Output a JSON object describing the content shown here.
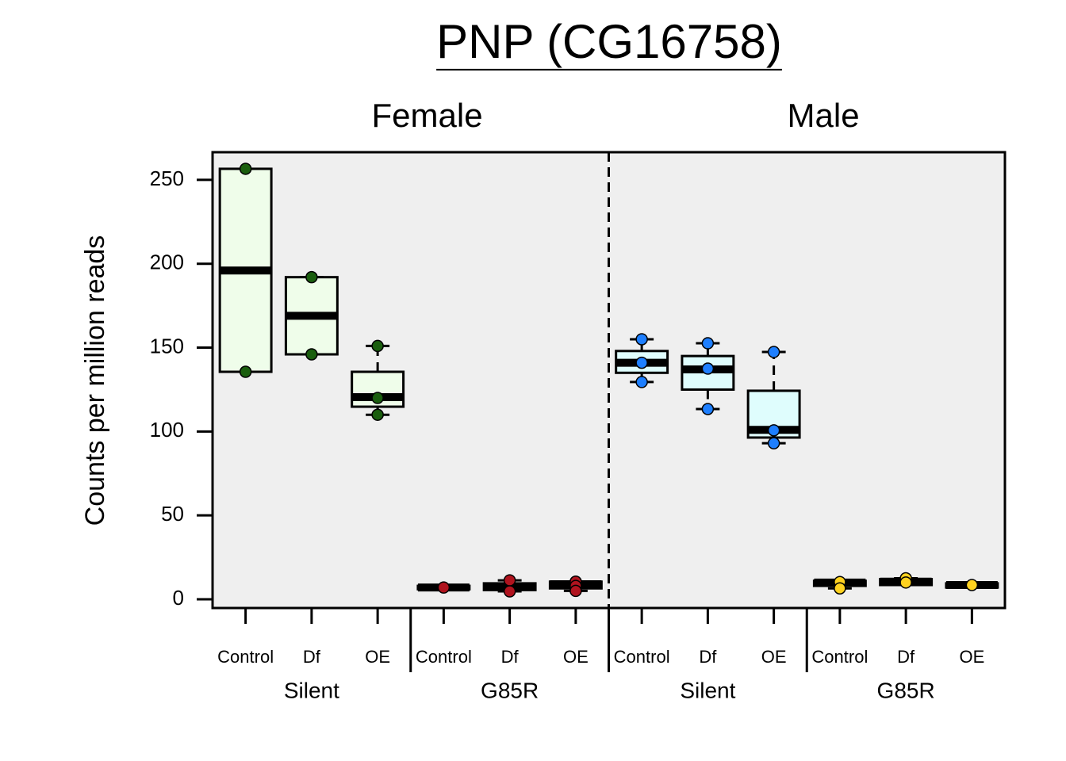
{
  "chart_data": {
    "type": "box",
    "title": "PNP (CG16758)",
    "y_label": "Counts per million reads",
    "panels": [
      "Female",
      "Male"
    ],
    "groups": [
      "Silent",
      "G85R",
      "Silent",
      "G85R"
    ],
    "categories": [
      "Control",
      "Df",
      "OE",
      "Control",
      "Df",
      "OE",
      "Control",
      "Df",
      "OE",
      "Control",
      "Df",
      "OE"
    ],
    "ylim": [
      -5.2,
      266.5
    ],
    "yticks": [
      0,
      50,
      100,
      150,
      200,
      250
    ],
    "background": "#efefef",
    "boxes": [
      {
        "q1": 135.6,
        "median": 196,
        "q3": 256.6,
        "whisker_low": 135.6,
        "whisker_high": 256.6,
        "points": [
          256.6,
          135.6
        ],
        "fill": "#effdea",
        "point_color": "#1a5e0e"
      },
      {
        "q1": 146,
        "median": 169,
        "q3": 192,
        "whisker_low": 146,
        "whisker_high": 192,
        "points": [
          192,
          146
        ],
        "fill": "#effdea",
        "point_color": "#1a5e0e"
      },
      {
        "q1": 114.8,
        "median": 120.5,
        "q3": 135.6,
        "whisker_low": 110,
        "whisker_high": 151,
        "points": [
          151,
          120,
          110
        ],
        "fill": "#effdea",
        "point_color": "#1a5e0e"
      },
      {
        "q1": 6,
        "median": 7,
        "q3": 8,
        "whisker_low": 6,
        "whisker_high": 8,
        "points": [
          7
        ],
        "fill": "#effdea",
        "point_color": "#b0131e"
      },
      {
        "q1": 5.5,
        "median": 7.5,
        "q3": 9.5,
        "whisker_low": 4.7,
        "whisker_high": 11.3,
        "points": [
          11.3,
          4.7
        ],
        "fill": "#effdea",
        "point_color": "#b0131e"
      },
      {
        "q1": 6.5,
        "median": 9,
        "q3": 10.5,
        "whisker_low": 5,
        "whisker_high": 10.5,
        "points": [
          10.5,
          8,
          5
        ],
        "fill": "#effdea",
        "point_color": "#b0131e"
      },
      {
        "q1": 135,
        "median": 141,
        "q3": 148,
        "whisker_low": 129.5,
        "whisker_high": 155,
        "points": [
          155,
          141,
          129.5
        ],
        "fill": "#dffdfd",
        "point_color": "#1e7fff"
      },
      {
        "q1": 125,
        "median": 137,
        "q3": 145,
        "whisker_low": 113.4,
        "whisker_high": 152.6,
        "points": [
          152.6,
          137.5,
          113.4
        ],
        "fill": "#dffdfd",
        "point_color": "#1e7fff"
      },
      {
        "q1": 96.4,
        "median": 101,
        "q3": 124.3,
        "whisker_low": 93,
        "whisker_high": 147.4,
        "points": [
          147.4,
          100.7,
          93
        ],
        "fill": "#dffdfd",
        "point_color": "#1e7fff"
      },
      {
        "q1": 8,
        "median": 10,
        "q3": 11,
        "whisker_low": 6.5,
        "whisker_high": 11,
        "points": [
          10.3,
          6.5
        ],
        "fill": "#dffdfd",
        "point_color": "#ffd21f"
      },
      {
        "q1": 8.5,
        "median": 10.5,
        "q3": 12,
        "whisker_low": 8.5,
        "whisker_high": 12.5,
        "points": [
          12.5,
          10
        ],
        "fill": "#dffdfd",
        "point_color": "#ffd21f"
      },
      {
        "q1": 7,
        "median": 8.5,
        "q3": 9.5,
        "whisker_low": 7,
        "whisker_high": 9.5,
        "points": [
          8.5
        ],
        "fill": "#dffdfd",
        "point_color": "#ffd21f"
      }
    ]
  }
}
